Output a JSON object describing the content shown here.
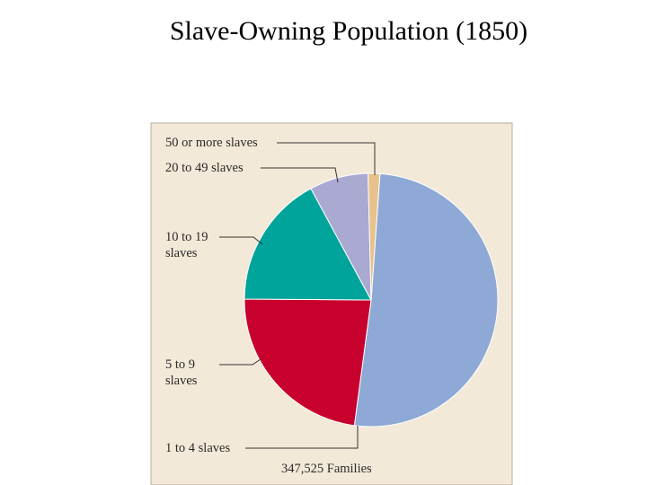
{
  "chart_data": {
    "type": "pie",
    "title": "Slave-Owning Population (1850)",
    "categories": [
      "1 to 4 slaves",
      "5 to 9 slaves",
      "10 to 19 slaves",
      "20 to 49 slaves",
      "50 or more slaves"
    ],
    "values": [
      51,
      23,
      17,
      7.5,
      1.5
    ],
    "colors": [
      "#8fa9d6",
      "#c8002d",
      "#00a49a",
      "#a9a9d2",
      "#e8c28c"
    ],
    "note": "347,525 Families"
  }
}
